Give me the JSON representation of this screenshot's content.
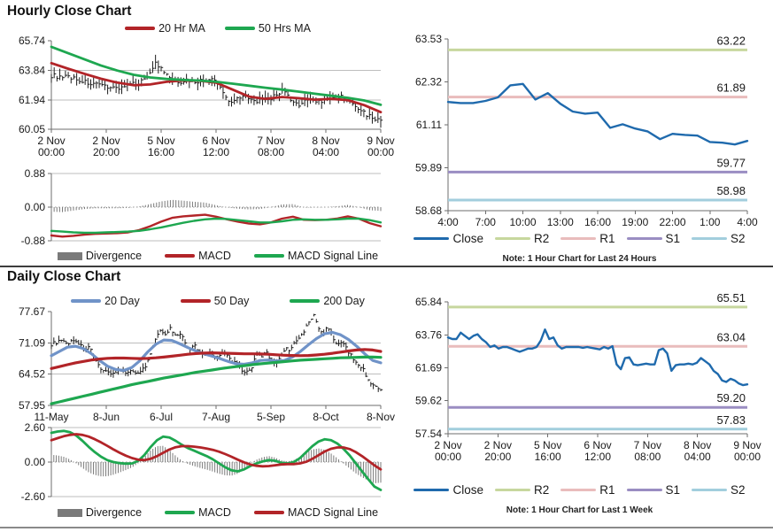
{
  "sections": [
    {
      "title": "Hourly Close Chart"
    },
    {
      "title": "Daily Close Chart"
    }
  ],
  "colors": {
    "candle": "#1c1c1c",
    "ma_red": "#b22428",
    "ma_green": "#1ea750",
    "ma_blue": "#7093c8",
    "close_blue": "#1f6aad",
    "r2": "#c7d79e",
    "r1": "#e9bcbc",
    "s1": "#9a8dc2",
    "s2": "#a2cedd",
    "divergence": "#7a7a7a",
    "grid": "#bdbdbd",
    "axis": "#6e6e6e",
    "text": "#1a1a1a"
  },
  "chart_data": [
    {
      "id": "hourly_price",
      "type": "candlestick+line",
      "legend": [
        {
          "label": "20 Hr MA",
          "colorKey": "ma_red",
          "swatch": "line"
        },
        {
          "label": "50 Hrs MA",
          "colorKey": "ma_green",
          "swatch": "line"
        }
      ],
      "ylim": [
        60.05,
        65.74
      ],
      "yticks": [
        "65.74",
        "63.84",
        "61.94",
        "60.05"
      ],
      "grid_yticks": [
        "63.84",
        "61.94"
      ],
      "xticks": [
        [
          "2 Nov",
          "00:00"
        ],
        [
          "2 Nov",
          "20:00"
        ],
        [
          "5 Nov",
          "16:00"
        ],
        [
          "6 Nov",
          "12:00"
        ],
        [
          "7 Nov",
          "08:00"
        ],
        [
          "8 Nov",
          "04:00"
        ],
        [
          "9 Nov",
          "00:00"
        ]
      ],
      "candles_close": [
        63.5,
        63.45,
        63.3,
        63.45,
        63.35,
        63.2,
        63.1,
        63.0,
        62.9,
        62.8,
        62.85,
        62.75,
        62.7,
        62.78,
        62.85,
        62.95,
        63.05,
        63.3,
        63.8,
        64.3,
        63.9,
        63.5,
        63.25,
        63.1,
        63.15,
        63.2,
        63.1,
        63.15,
        63.2,
        63.25,
        63.1,
        62.6,
        62.0,
        61.8,
        62.1,
        62.3,
        61.9,
        61.85,
        61.9,
        61.95,
        62.0,
        62.3,
        62.55,
        62.2,
        61.7,
        61.6,
        61.9,
        61.95,
        61.9,
        61.85,
        61.95,
        62.0,
        62.1,
        62.15,
        61.9,
        61.6,
        61.35,
        61.1,
        60.9,
        60.7,
        60.55
      ],
      "series": [
        {
          "name": "20 Hr MA",
          "colorKey": "ma_red",
          "values": [
            64.3,
            63.95,
            63.62,
            63.3,
            63.05,
            62.88,
            62.93,
            63.1,
            63.18,
            63.17,
            63.05,
            62.6,
            62.15,
            62.0,
            62.12,
            62.05,
            61.95,
            62.0,
            61.92,
            61.6,
            61.15
          ]
        },
        {
          "name": "50 Hrs MA",
          "colorKey": "ma_green",
          "values": [
            65.35,
            64.95,
            64.55,
            64.15,
            63.82,
            63.55,
            63.38,
            63.28,
            63.22,
            63.18,
            63.1,
            62.98,
            62.85,
            62.72,
            62.6,
            62.47,
            62.33,
            62.2,
            62.07,
            61.9,
            61.62
          ]
        }
      ]
    },
    {
      "id": "hourly_macd",
      "type": "macd",
      "legend": [
        {
          "label": "Divergence",
          "colorKey": "divergence",
          "swatch": "bar"
        },
        {
          "label": "MACD",
          "colorKey": "ma_red",
          "swatch": "line"
        },
        {
          "label": "MACD Signal Line",
          "colorKey": "ma_green",
          "swatch": "line"
        }
      ],
      "ylim": [
        -0.88,
        0.88
      ],
      "yticks": [
        "0.88",
        "0.00",
        "-0.88"
      ],
      "series": [
        {
          "name": "MACD",
          "colorKey": "ma_red",
          "values": [
            -0.74,
            -0.77,
            -0.75,
            -0.72,
            -0.7,
            -0.69,
            -0.68,
            -0.66,
            -0.6,
            -0.5,
            -0.38,
            -0.28,
            -0.24,
            -0.22,
            -0.2,
            -0.25,
            -0.32,
            -0.38,
            -0.43,
            -0.45,
            -0.4,
            -0.3,
            -0.25,
            -0.33,
            -0.34,
            -0.33,
            -0.3,
            -0.24,
            -0.3,
            -0.42,
            -0.5
          ]
        },
        {
          "name": "MACD Signal Line",
          "colorKey": "ma_green",
          "values": [
            -0.62,
            -0.64,
            -0.66,
            -0.67,
            -0.67,
            -0.66,
            -0.65,
            -0.64,
            -0.62,
            -0.58,
            -0.53,
            -0.47,
            -0.41,
            -0.36,
            -0.32,
            -0.3,
            -0.31,
            -0.34,
            -0.37,
            -0.4,
            -0.4,
            -0.37,
            -0.33,
            -0.32,
            -0.33,
            -0.33,
            -0.32,
            -0.3,
            -0.3,
            -0.34,
            -0.4
          ]
        }
      ]
    },
    {
      "id": "hourly_levels",
      "type": "line",
      "note": "Note: 1 Hour Chart for Last 24 Hours",
      "legend": [
        {
          "label": "Close",
          "colorKey": "close_blue",
          "swatch": "line"
        },
        {
          "label": "R2",
          "colorKey": "r2",
          "swatch": "line"
        },
        {
          "label": "R1",
          "colorKey": "r1",
          "swatch": "line"
        },
        {
          "label": "S1",
          "colorKey": "s1",
          "swatch": "line"
        },
        {
          "label": "S2",
          "colorKey": "s2",
          "swatch": "line"
        }
      ],
      "ylim": [
        58.68,
        63.53
      ],
      "yticks": [
        "63.53",
        "62.32",
        "61.11",
        "59.89",
        "58.68"
      ],
      "xticks": [
        "4:00",
        "7:00",
        "10:00",
        "13:00",
        "16:00",
        "19:00",
        "22:00",
        "1:00",
        "4:00"
      ],
      "levels": [
        {
          "name": "R2",
          "value": 63.22,
          "label": "63.22",
          "colorKey": "r2"
        },
        {
          "name": "R1",
          "value": 61.89,
          "label": "61.89",
          "colorKey": "r1"
        },
        {
          "name": "S1",
          "value": 59.77,
          "label": "59.77",
          "colorKey": "s1"
        },
        {
          "name": "S2",
          "value": 58.98,
          "label": "58.98",
          "colorKey": "s2"
        }
      ],
      "series": [
        {
          "name": "Close",
          "colorKey": "close_blue",
          "values": [
            61.75,
            61.72,
            61.72,
            61.78,
            61.88,
            62.22,
            62.26,
            61.82,
            62.0,
            61.7,
            61.48,
            61.42,
            61.45,
            61.02,
            61.12,
            61.0,
            60.92,
            60.7,
            60.85,
            60.82,
            60.8,
            60.62,
            60.6,
            60.55,
            60.65
          ]
        }
      ]
    },
    {
      "id": "daily_price",
      "type": "candlestick+line",
      "legend": [
        {
          "label": "20 Day",
          "colorKey": "ma_blue",
          "swatch": "line"
        },
        {
          "label": "50 Day",
          "colorKey": "ma_red",
          "swatch": "line"
        },
        {
          "label": "200 Day",
          "colorKey": "ma_green",
          "swatch": "line"
        }
      ],
      "ylim": [
        57.95,
        77.67
      ],
      "yticks": [
        "77.67",
        "71.09",
        "64.52",
        "57.95"
      ],
      "grid_yticks": [
        "71.09",
        "64.52"
      ],
      "xticks": [
        "11-May",
        "8-Jun",
        "6-Jul",
        "7-Aug",
        "5-Sep",
        "8-Oct",
        "8-Nov"
      ],
      "candles_close": [
        70.8,
        71.2,
        71.5,
        70.9,
        71.3,
        71.8,
        70.6,
        69.8,
        70.2,
        67.5,
        66.2,
        65.3,
        64.9,
        64.7,
        65.1,
        64.8,
        65.2,
        65.0,
        64.9,
        65.4,
        66.5,
        69.5,
        72.5,
        73.6,
        73.1,
        74.2,
        72.6,
        73.2,
        71.1,
        69.6,
        70.6,
        69.1,
        68.6,
        69.6,
        68.1,
        68.6,
        69.1,
        68.1,
        67.1,
        66.6,
        65.1,
        64.9,
        66.1,
        68.6,
        68.1,
        69.1,
        67.6,
        66.6,
        68.1,
        70.1,
        69.6,
        71.1,
        72.1,
        73.6,
        75.6,
        76.8,
        74.1,
        73.1,
        74.6,
        72.1,
        70.6,
        71.1,
        69.6,
        68.1,
        66.6,
        66.1,
        64.1,
        62.6,
        61.6,
        61.1
      ],
      "series": [
        {
          "name": "20 Day",
          "colorKey": "ma_blue",
          "values": [
            68.4,
            69.3,
            70.2,
            70.4,
            69.9,
            68.8,
            67.4,
            66.2,
            65.5,
            65.3,
            65.9,
            67.3,
            69.2,
            70.8,
            71.7,
            71.6,
            70.9,
            70.1,
            69.4,
            68.8,
            68.3,
            67.8,
            67.2,
            66.7,
            66.6,
            66.9,
            67.4,
            67.5,
            67.3,
            67.4,
            68.1,
            69.3,
            70.7,
            72.0,
            73.0,
            73.3,
            72.8,
            71.8,
            70.4,
            68.8,
            67.4,
            66.9
          ]
        },
        {
          "name": "50 Day",
          "colorKey": "ma_red",
          "values": [
            65.7,
            66.1,
            66.5,
            66.9,
            67.2,
            67.5,
            67.7,
            67.85,
            67.9,
            67.9,
            67.85,
            67.8,
            67.85,
            67.95,
            68.1,
            68.3,
            68.5,
            68.7,
            68.85,
            68.95,
            69.0,
            68.95,
            68.9,
            68.85,
            68.8,
            68.8,
            68.75,
            68.7,
            68.6,
            68.5,
            68.45,
            68.4,
            68.45,
            68.55,
            68.7,
            68.9,
            69.15,
            69.4,
            69.6,
            69.7,
            69.6,
            69.3
          ]
        },
        {
          "name": "200 Day",
          "colorKey": "ma_green",
          "values": [
            58.3,
            58.7,
            59.1,
            59.5,
            59.9,
            60.3,
            60.7,
            61.1,
            61.5,
            61.9,
            62.3,
            62.65,
            63.0,
            63.35,
            63.7,
            64.0,
            64.3,
            64.6,
            64.9,
            65.15,
            65.4,
            65.65,
            65.9,
            66.1,
            66.3,
            66.5,
            66.7,
            66.85,
            67.0,
            67.15,
            67.3,
            67.45,
            67.55,
            67.65,
            67.75,
            67.85,
            67.95,
            68.0,
            68.05,
            68.1,
            68.1,
            68.05
          ]
        }
      ]
    },
    {
      "id": "daily_macd",
      "type": "macd",
      "legend": [
        {
          "label": "Divergence",
          "colorKey": "divergence",
          "swatch": "bar"
        },
        {
          "label": "MACD",
          "colorKey": "ma_green",
          "swatch": "line"
        },
        {
          "label": "MACD Signal Line",
          "colorKey": "ma_red",
          "swatch": "line"
        }
      ],
      "ylim": [
        -2.6,
        2.6
      ],
      "yticks": [
        "2.60",
        "0.00",
        "-2.60"
      ],
      "series": [
        {
          "name": "MACD",
          "colorKey": "ma_green",
          "values": [
            2.2,
            2.3,
            2.35,
            2.25,
            2.0,
            1.6,
            1.15,
            0.75,
            0.4,
            0.15,
            0.0,
            -0.08,
            -0.12,
            -0.1,
            0.1,
            0.55,
            1.15,
            1.65,
            1.92,
            1.85,
            1.6,
            1.3,
            1.05,
            0.85,
            0.65,
            0.45,
            0.2,
            -0.1,
            -0.4,
            -0.62,
            -0.7,
            -0.55,
            -0.3,
            -0.1,
            0.05,
            0.15,
            0.1,
            -0.05,
            -0.1,
            0.0,
            0.3,
            0.75,
            1.2,
            1.55,
            1.72,
            1.65,
            1.4,
            1.0,
            0.5,
            -0.1,
            -0.7,
            -1.3,
            -1.85,
            -2.1
          ]
        },
        {
          "name": "MACD Signal Line",
          "colorKey": "ma_red",
          "values": [
            1.65,
            1.8,
            1.95,
            2.05,
            2.1,
            2.05,
            1.92,
            1.72,
            1.48,
            1.22,
            0.95,
            0.7,
            0.48,
            0.3,
            0.18,
            0.15,
            0.25,
            0.45,
            0.7,
            0.95,
            1.12,
            1.2,
            1.2,
            1.16,
            1.1,
            1.02,
            0.92,
            0.78,
            0.6,
            0.4,
            0.18,
            -0.02,
            -0.18,
            -0.28,
            -0.32,
            -0.3,
            -0.24,
            -0.18,
            -0.15,
            -0.15,
            -0.1,
            0.02,
            0.25,
            0.52,
            0.8,
            1.0,
            1.1,
            1.1,
            0.98,
            0.75,
            0.45,
            0.1,
            -0.25,
            -0.55
          ]
        }
      ]
    },
    {
      "id": "weekly_levels",
      "type": "line",
      "note": "Note: 1 Hour Chart for Last 1 Week",
      "legend": [
        {
          "label": "Close",
          "colorKey": "close_blue",
          "swatch": "line"
        },
        {
          "label": "R2",
          "colorKey": "r2",
          "swatch": "line"
        },
        {
          "label": "R1",
          "colorKey": "r1",
          "swatch": "line"
        },
        {
          "label": "S1",
          "colorKey": "s1",
          "swatch": "line"
        },
        {
          "label": "S2",
          "colorKey": "s2",
          "swatch": "line"
        }
      ],
      "ylim": [
        57.54,
        65.84
      ],
      "yticks": [
        "65.84",
        "63.76",
        "61.69",
        "59.62",
        "57.54"
      ],
      "xticks": [
        [
          "2 Nov",
          "00:00"
        ],
        [
          "2 Nov",
          "20:00"
        ],
        [
          "5 Nov",
          "16:00"
        ],
        [
          "6 Nov",
          "12:00"
        ],
        [
          "7 Nov",
          "08:00"
        ],
        [
          "8 Nov",
          "04:00"
        ],
        [
          "9 Nov",
          "00:00"
        ]
      ],
      "levels": [
        {
          "name": "R2",
          "value": 65.51,
          "label": "65.51",
          "colorKey": "r2"
        },
        {
          "name": "R1",
          "value": 63.04,
          "label": "63.04",
          "colorKey": "r1"
        },
        {
          "name": "S1",
          "value": 59.2,
          "label": "59.20",
          "colorKey": "s1"
        },
        {
          "name": "S2",
          "value": 57.83,
          "label": "57.83",
          "colorKey": "s2"
        }
      ],
      "series": [
        {
          "name": "Close",
          "colorKey": "close_blue",
          "values": [
            63.6,
            63.5,
            63.5,
            63.9,
            63.7,
            63.5,
            63.7,
            63.8,
            63.5,
            63.3,
            63.0,
            63.1,
            62.9,
            63.0,
            63.0,
            62.9,
            62.8,
            62.7,
            62.8,
            62.9,
            62.9,
            63.0,
            63.4,
            64.1,
            63.5,
            63.6,
            63.1,
            62.9,
            63.0,
            63.0,
            63.0,
            63.0,
            62.95,
            63.0,
            62.95,
            62.9,
            62.85,
            63.0,
            62.9,
            63.05,
            61.9,
            61.6,
            62.3,
            62.35,
            61.9,
            61.85,
            61.9,
            61.95,
            61.9,
            61.9,
            62.8,
            62.9,
            62.6,
            61.5,
            61.85,
            61.9,
            61.9,
            61.95,
            61.9,
            62.0,
            62.3,
            62.1,
            61.9,
            61.5,
            61.3,
            60.9,
            60.8,
            61.0,
            60.9,
            60.7,
            60.6,
            60.65
          ]
        }
      ]
    }
  ]
}
